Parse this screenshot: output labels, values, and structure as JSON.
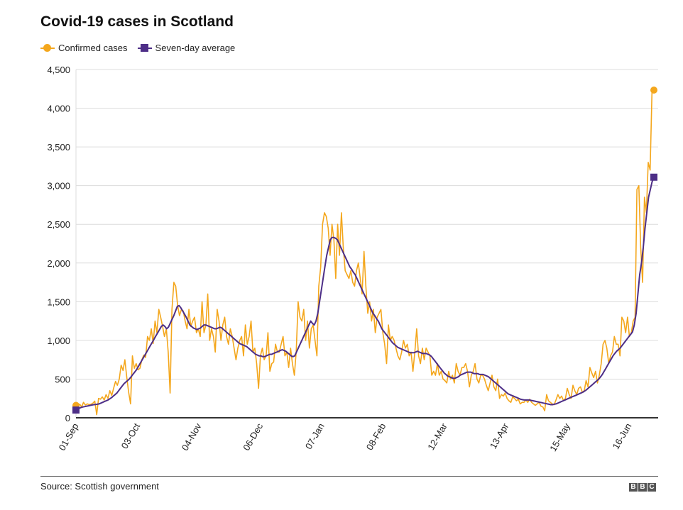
{
  "title": "Covid-19 cases in Scotland",
  "legend": [
    {
      "label": "Confirmed cases",
      "color": "#f4a71d",
      "marker": "circle"
    },
    {
      "label": "Seven-day average",
      "color": "#4d2e87",
      "marker": "square"
    }
  ],
  "source": "Source: Scottish government",
  "logo": [
    "B",
    "B",
    "C"
  ],
  "chart_data": {
    "type": "line",
    "title": "Covid-19 cases in Scotland",
    "xlabel": "",
    "ylabel": "",
    "ylim": [
      0,
      4500
    ],
    "yticks": [
      0,
      500,
      1000,
      1500,
      2000,
      2500,
      3000,
      3500,
      4000,
      4500
    ],
    "ytick_labels": [
      "0",
      "500",
      "1,000",
      "1,500",
      "2,000",
      "2,500",
      "3,000",
      "3,500",
      "4,000",
      "4,500"
    ],
    "xtick_labels": [
      "01-Sep",
      "03-Oct",
      "04-Nov",
      "06-Dec",
      "07-Jan",
      "08-Feb",
      "12-Mar",
      "13-Apr",
      "15-May",
      "16-Jun"
    ],
    "xtick_days": [
      0,
      32,
      64,
      96,
      128,
      160,
      192,
      224,
      256,
      288
    ],
    "x_start": "01-Sep",
    "x_end_day": 301,
    "grid": true,
    "legend_position": "top-left",
    "series": [
      {
        "name": "Confirmed cases",
        "color": "#f4a71d",
        "end_marker": "circle",
        "start_marker": "circle",
        "values": [
          160,
          150,
          175,
          140,
          200,
          165,
          180,
          170,
          175,
          190,
          215,
          40,
          250,
          240,
          270,
          230,
          300,
          250,
          350,
          290,
          380,
          470,
          420,
          500,
          680,
          610,
          750,
          520,
          330,
          180,
          800,
          640,
          700,
          620,
          640,
          750,
          810,
          780,
          1050,
          1000,
          1150,
          960,
          1250,
          1100,
          1400,
          1300,
          1180,
          1050,
          1150,
          850,
          320,
          1400,
          1750,
          1700,
          1450,
          1320,
          1400,
          1380,
          1250,
          1150,
          1400,
          1180,
          1250,
          1300,
          1100,
          1150,
          1050,
          1500,
          1100,
          1200,
          1600,
          1000,
          1150,
          1050,
          850,
          1400,
          1250,
          1000,
          1200,
          1300,
          1050,
          950,
          1150,
          1050,
          900,
          750,
          900,
          1000,
          1050,
          800,
          1200,
          950,
          1050,
          1250,
          850,
          900,
          700,
          380,
          800,
          900,
          750,
          800,
          1100,
          600,
          700,
          720,
          950,
          850,
          850,
          950,
          1050,
          800,
          850,
          650,
          900,
          700,
          550,
          850,
          1500,
          1300,
          1250,
          1400,
          1000,
          1250,
          900,
          1150,
          1200,
          1000,
          800,
          1700,
          1950,
          2500,
          2650,
          2600,
          2450,
          2100,
          2500,
          2300,
          1800,
          2500,
          2100,
          2650,
          2200,
          1900,
          1850,
          1800,
          1900,
          1750,
          1700,
          1900,
          2000,
          1800,
          1600,
          2150,
          1700,
          1350,
          1500,
          1250,
          1400,
          1100,
          1300,
          1350,
          1400,
          1100,
          950,
          700,
          1200,
          1000,
          1050,
          1000,
          900,
          800,
          750,
          850,
          1000,
          900,
          950,
          800,
          850,
          600,
          850,
          1150,
          800,
          700,
          900,
          750,
          900,
          850,
          800,
          550,
          600,
          550,
          700,
          550,
          600,
          500,
          480,
          450,
          600,
          500,
          550,
          450,
          700,
          600,
          550,
          650,
          650,
          700,
          600,
          400,
          550,
          600,
          700,
          500,
          450,
          550,
          550,
          500,
          420,
          350,
          450,
          550,
          400,
          350,
          500,
          250,
          300,
          280,
          320,
          250,
          220,
          200,
          270,
          250,
          220,
          240,
          180,
          200,
          200,
          230,
          200,
          240,
          200,
          180,
          160,
          180,
          200,
          150,
          140,
          90,
          300,
          220,
          200,
          180,
          170,
          230,
          300,
          250,
          280,
          220,
          250,
          380,
          300,
          250,
          420,
          350,
          300,
          380,
          400,
          330,
          350,
          480,
          400,
          650,
          580,
          520,
          600,
          450,
          550,
          700,
          950,
          1000,
          900,
          700,
          800,
          850,
          1050,
          950,
          950,
          800,
          1300,
          1250,
          1100,
          1300,
          1050,
          1100,
          1250,
          1300,
          2950,
          3000,
          2200,
          1750,
          2850,
          2650,
          3300,
          3200,
          4200,
          4234
        ],
        "last_value": 4234
      },
      {
        "name": "Seven-day average",
        "color": "#4d2e87",
        "end_marker": "square",
        "start_marker": "square",
        "values": [
          100,
          115,
          125,
          135,
          140,
          145,
          150,
          155,
          160,
          165,
          170,
          172,
          175,
          180,
          190,
          200,
          210,
          220,
          230,
          245,
          260,
          280,
          300,
          320,
          350,
          380,
          410,
          440,
          460,
          480,
          500,
          530,
          560,
          590,
          620,
          660,
          700,
          740,
          780,
          820,
          860,
          900,
          940,
          980,
          1020,
          1060,
          1100,
          1140,
          1180,
          1200,
          1180,
          1150,
          1170,
          1220,
          1270,
          1320,
          1380,
          1440,
          1450,
          1420,
          1380,
          1340,
          1300,
          1250,
          1200,
          1180,
          1160,
          1150,
          1140,
          1150,
          1160,
          1180,
          1200,
          1200,
          1190,
          1180,
          1170,
          1160,
          1150,
          1150,
          1160,
          1170,
          1160,
          1140,
          1120,
          1100,
          1080,
          1060,
          1040,
          1020,
          1000,
          980,
          960,
          950,
          940,
          930,
          920,
          900,
          880,
          860,
          840,
          820,
          810,
          800,
          800,
          790,
          790,
          800,
          810,
          820,
          820,
          830,
          840,
          850,
          860,
          870,
          880,
          870,
          860,
          840,
          820,
          800,
          790,
          800,
          850,
          900,
          950,
          1000,
          1050,
          1100,
          1150,
          1200,
          1250,
          1220,
          1200,
          1250,
          1350,
          1500,
          1650,
          1800,
          1950,
          2100,
          2200,
          2300,
          2330,
          2330,
          2320,
          2300,
          2250,
          2200,
          2150,
          2100,
          2050,
          2000,
          1950,
          1920,
          1880,
          1850,
          1800,
          1750,
          1700,
          1650,
          1600,
          1550,
          1500,
          1450,
          1400,
          1350,
          1320,
          1280,
          1250,
          1200,
          1150,
          1120,
          1090,
          1060,
          1030,
          1000,
          970,
          950,
          930,
          910,
          900,
          890,
          880,
          870,
          860,
          850,
          840,
          840,
          840,
          850,
          860,
          850,
          840,
          830,
          830,
          830,
          820,
          810,
          790,
          760,
          730,
          700,
          670,
          640,
          610,
          580,
          560,
          540,
          530,
          520,
          510,
          510,
          520,
          530,
          550,
          560,
          570,
          580,
          590,
          590,
          590,
          580,
          570,
          570,
          570,
          560,
          560,
          560,
          550,
          540,
          530,
          510,
          490,
          470,
          450,
          430,
          410,
          390,
          370,
          350,
          330,
          310,
          300,
          290,
          280,
          270,
          260,
          250,
          240,
          235,
          230,
          230,
          230,
          230,
          225,
          220,
          215,
          210,
          205,
          200,
          195,
          190,
          185,
          180,
          175,
          170,
          170,
          175,
          180,
          190,
          200,
          210,
          220,
          230,
          240,
          250,
          260,
          270,
          280,
          290,
          300,
          310,
          320,
          330,
          345,
          360,
          380,
          400,
          420,
          440,
          460,
          480,
          500,
          530,
          560,
          600,
          640,
          680,
          720,
          760,
          800,
          830,
          860,
          880,
          900,
          930,
          960,
          990,
          1020,
          1050,
          1080,
          1110,
          1200,
          1350,
          1600,
          1850,
          2000,
          2200,
          2450,
          2650,
          2850,
          2950,
          3050,
          3109
        ],
        "last_value": 3109
      }
    ]
  }
}
